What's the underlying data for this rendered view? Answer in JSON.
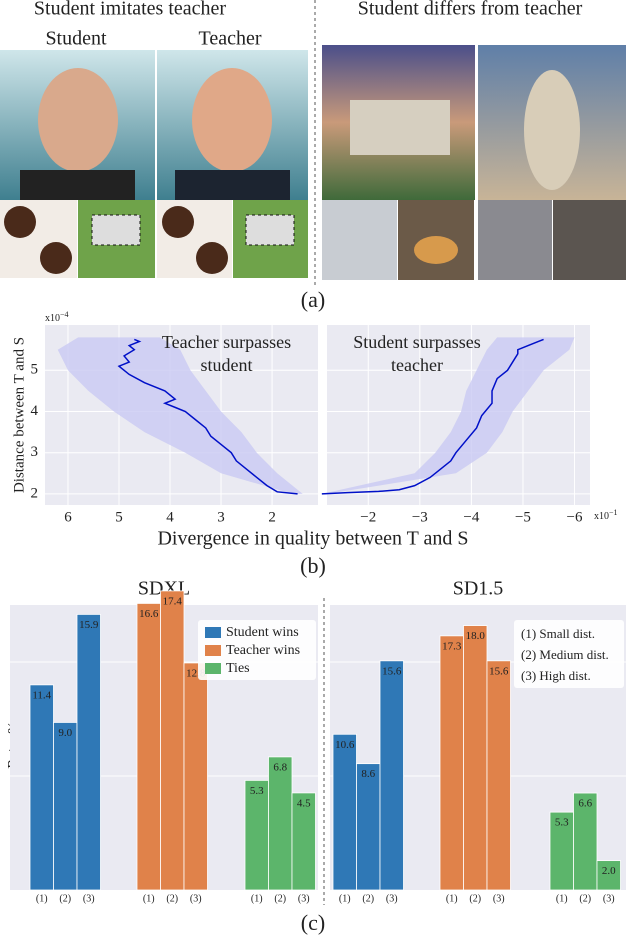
{
  "panel_a": {
    "left_title": "Student imitates teacher",
    "student": "Student",
    "teacher": "Teacher",
    "right_title": "Student differs from teacher",
    "caption": "(a)"
  },
  "panel_b": {
    "ylabel": "Distance between T and S",
    "xlabel": "Divergence in quality between T and S",
    "caption": "(b)"
  },
  "panel_c": {
    "ylabel": "Rate, %",
    "caption": "(c)"
  },
  "chart_data": [
    {
      "type": "line",
      "annotation": [
        "Teacher surpasses",
        "student"
      ],
      "xlim": [
        6.45,
        1.1
      ],
      "xticks": [
        6,
        5,
        4,
        3,
        2
      ],
      "ylim": [
        1.73,
        6.1
      ],
      "yticks": [
        2,
        3,
        4,
        5
      ],
      "y_multiplier": [
        "x10",
        "−4"
      ],
      "grid": true,
      "series": [
        {
          "color": "#0010c8",
          "x": [
            1.5,
            1.9,
            2.1,
            2.3,
            2.5,
            2.7,
            2.8,
            3.0,
            3.2,
            3.3,
            3.5,
            3.7,
            3.9,
            4.1,
            3.9,
            4.1,
            4.5,
            4.8,
            4.9,
            5.0,
            4.8,
            4.9,
            4.7,
            4.8,
            4.6,
            4.7
          ],
          "y": [
            2.0,
            2.05,
            2.2,
            2.4,
            2.6,
            2.8,
            3.0,
            3.2,
            3.4,
            3.6,
            3.8,
            4.0,
            4.1,
            4.2,
            4.3,
            4.5,
            4.7,
            4.9,
            5.0,
            5.1,
            5.2,
            5.35,
            5.5,
            5.6,
            5.7,
            5.75
          ]
        }
      ],
      "band": {
        "color": "#c9c9f2",
        "y": [
          2.0,
          2.5,
          3.0,
          3.5,
          4.0,
          4.5,
          5.0,
          5.5,
          5.8
        ],
        "x_low": [
          1.4,
          1.9,
          2.3,
          2.6,
          3.0,
          3.3,
          3.6,
          3.8,
          4.2
        ],
        "x_high": [
          1.6,
          3.0,
          3.7,
          4.5,
          5.1,
          5.6,
          6.0,
          6.2,
          5.8
        ]
      }
    },
    {
      "type": "line",
      "annotation": [
        "Student surpasses",
        "teacher"
      ],
      "sharey": true,
      "xlim": [
        -1.2,
        -6.3
      ],
      "xticks": [
        {
          "value": -2,
          "label": "−2"
        },
        {
          "value": -3,
          "label": "−3"
        },
        {
          "value": -4,
          "label": "−4"
        },
        {
          "value": -5,
          "label": "−5"
        },
        {
          "value": -6,
          "label": "−6"
        }
      ],
      "x_multiplier": [
        "x10",
        "−1"
      ],
      "grid": true,
      "series": [
        {
          "color": "#0010c8",
          "x": [
            -1.1,
            -1.6,
            -2.2,
            -2.6,
            -2.9,
            -3.2,
            -3.4,
            -3.6,
            -3.7,
            -3.9,
            -4.1,
            -4.2,
            -4.4,
            -4.4,
            -4.5,
            -4.7,
            -4.8,
            -4.9,
            -4.9,
            -5.1,
            -5.3,
            -5.4
          ],
          "y": [
            2.0,
            2.03,
            2.06,
            2.1,
            2.2,
            2.4,
            2.6,
            2.8,
            3.0,
            3.3,
            3.6,
            3.9,
            4.2,
            4.5,
            4.8,
            5.0,
            5.2,
            5.4,
            5.5,
            5.6,
            5.7,
            5.75
          ]
        }
      ],
      "band": {
        "color": "#c9c9f2",
        "y": [
          2.0,
          2.5,
          3.0,
          3.5,
          4.0,
          4.5,
          5.0,
          5.5,
          5.8
        ],
        "x_low": [
          -1.1,
          -2.9,
          -3.3,
          -3.6,
          -3.8,
          -3.9,
          -4.1,
          -4.3,
          -4.5
        ],
        "x_high": [
          -1.2,
          -3.7,
          -4.3,
          -4.6,
          -4.8,
          -5.1,
          -5.4,
          -5.9,
          -6.0
        ]
      }
    },
    {
      "type": "bar",
      "title": "SDXL",
      "categories": [
        "(1)",
        "(2)",
        "(3)"
      ],
      "ylim": [
        -1.7,
        16.5
      ],
      "legend": "upper right",
      "series": [
        {
          "name": "Student wins",
          "color": "#2f78b6",
          "values": [
            11.4,
            9,
            15.9
          ],
          "value_labels": [
            "11.4",
            "9.0",
            "15.9"
          ]
        },
        {
          "name": "Teacher wins",
          "color": "#e0824a",
          "values": [
            16.6,
            17.4,
            12.8
          ],
          "value_labels": [
            "16.6",
            "17.4",
            "12.8"
          ]
        },
        {
          "name": "Ties",
          "color": "#5cb56b",
          "values": [
            5.3,
            6.8,
            4.5
          ],
          "value_labels": [
            "5.3",
            "6.8",
            "4.5"
          ]
        }
      ]
    },
    {
      "type": "bar",
      "title": "SD1.5",
      "categories": [
        "(1)",
        "(2)",
        "(3)"
      ],
      "ylim": [
        0,
        19.4
      ],
      "notes": [
        "(1) Small dist.",
        "(2) Medium dist.",
        "(3) High dist."
      ],
      "series": [
        {
          "color": "#2f78b6",
          "values": [
            10.6,
            8.6,
            15.6
          ],
          "value_labels": [
            "10.6",
            "8.6",
            "15.6"
          ]
        },
        {
          "color": "#e0824a",
          "values": [
            17.3,
            18,
            15.6
          ],
          "value_labels": [
            "17.3",
            "18.0",
            "15.6"
          ]
        },
        {
          "color": "#5cb56b",
          "values": [
            5.3,
            6.6,
            2
          ],
          "value_labels": [
            "5.3",
            "6.6",
            "2.0"
          ]
        }
      ]
    }
  ]
}
